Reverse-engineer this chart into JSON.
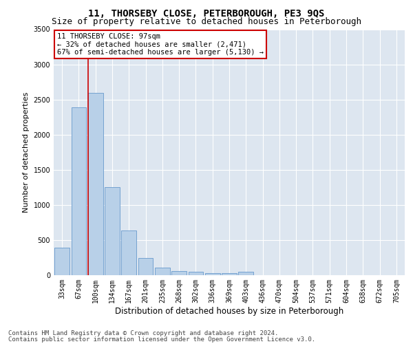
{
  "title": "11, THORSEBY CLOSE, PETERBOROUGH, PE3 9QS",
  "subtitle": "Size of property relative to detached houses in Peterborough",
  "xlabel": "Distribution of detached houses by size in Peterborough",
  "ylabel": "Number of detached properties",
  "categories": [
    "33sqm",
    "67sqm",
    "100sqm",
    "134sqm",
    "167sqm",
    "201sqm",
    "235sqm",
    "268sqm",
    "302sqm",
    "336sqm",
    "369sqm",
    "403sqm",
    "436sqm",
    "470sqm",
    "504sqm",
    "537sqm",
    "571sqm",
    "604sqm",
    "638sqm",
    "672sqm",
    "705sqm"
  ],
  "values": [
    390,
    2390,
    2590,
    1250,
    640,
    245,
    108,
    57,
    47,
    30,
    30,
    50,
    0,
    0,
    0,
    0,
    0,
    0,
    0,
    0,
    0
  ],
  "bar_color": "#b8d0e8",
  "bar_edge_color": "#6699cc",
  "vline_color": "#cc0000",
  "annotation_text": "11 THORSEBY CLOSE: 97sqm\n← 32% of detached houses are smaller (2,471)\n67% of semi-detached houses are larger (5,130) →",
  "annotation_box_color": "#ffffff",
  "annotation_box_edge_color": "#cc0000",
  "ylim": [
    0,
    3500
  ],
  "yticks": [
    0,
    500,
    1000,
    1500,
    2000,
    2500,
    3000,
    3500
  ],
  "background_color": "#dde6f0",
  "plot_bg_color": "#dde6f0",
  "grid_color": "#ffffff",
  "footer_line1": "Contains HM Land Registry data © Crown copyright and database right 2024.",
  "footer_line2": "Contains public sector information licensed under the Open Government Licence v3.0.",
  "title_fontsize": 10,
  "subtitle_fontsize": 9,
  "xlabel_fontsize": 8.5,
  "ylabel_fontsize": 8,
  "tick_fontsize": 7,
  "annot_fontsize": 7.5,
  "footer_fontsize": 6.5
}
